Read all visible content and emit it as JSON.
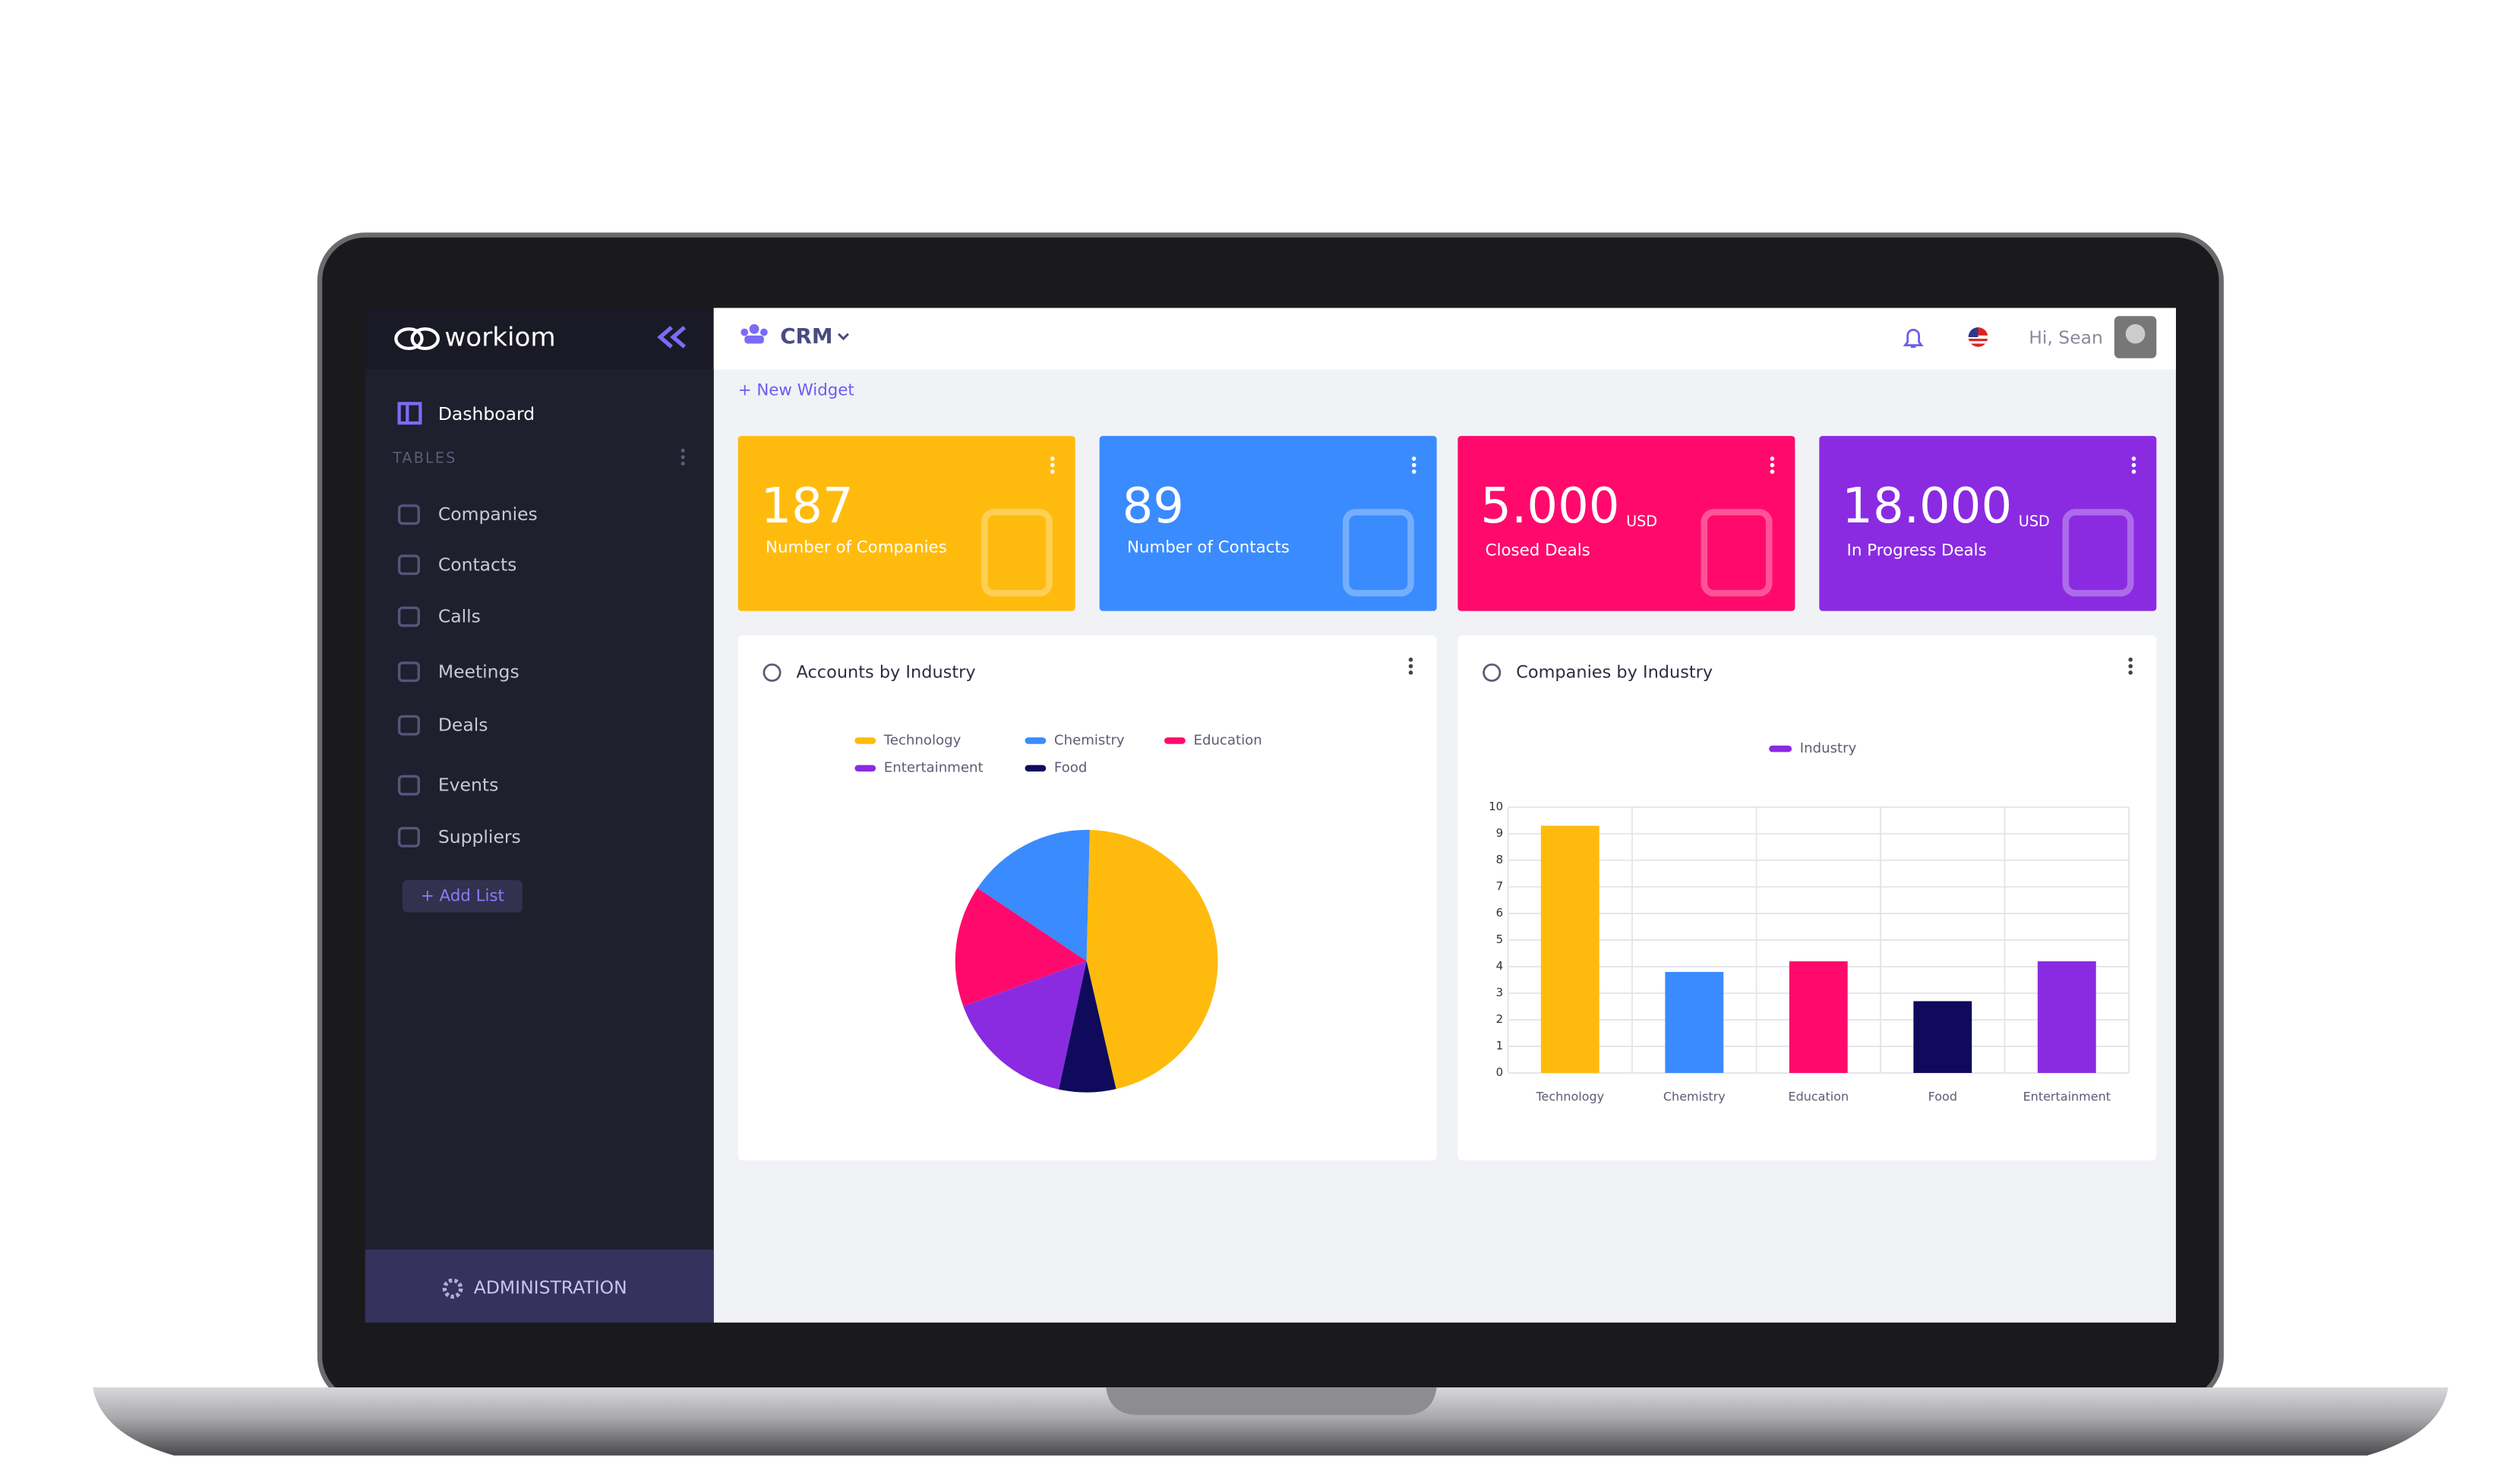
{
  "brand": "workiom",
  "header": {
    "module": "CRM",
    "greeting": "Hi, Sean",
    "new_widget": "+ New Widget"
  },
  "sidebar": {
    "dashboard": "Dashboard",
    "section": "TABLES",
    "items": [
      "Companies",
      "Contacts",
      "Calls",
      "Meetings",
      "Deals",
      "Events",
      "Suppliers"
    ],
    "add_list": "+ Add List",
    "admin": "ADMINISTRATION"
  },
  "widgets": [
    {
      "value": "187",
      "label": "Number of Companies",
      "color": "#ffbb0d"
    },
    {
      "value": "89",
      "label": "Number of Contacts",
      "color": "#3a8bfd"
    },
    {
      "value": "5.000",
      "unit": "USD",
      "label": "Closed Deals",
      "color": "#ff0a6c"
    },
    {
      "value": "18.000",
      "unit": "USD",
      "label": "In Progress Deals",
      "color": "#8a2be2"
    }
  ],
  "charts": [
    {
      "type": "pie",
      "title": "Accounts by Industry",
      "categories": [
        "Technology",
        "Chemistry",
        "Education",
        "Entertainment",
        "Food"
      ],
      "values": [
        46,
        16,
        15,
        16,
        7
      ],
      "colors": [
        "#ffbb0d",
        "#3a8bfd",
        "#ff0a6c",
        "#8a2be2",
        "#0f0a5c"
      ]
    },
    {
      "type": "bar",
      "title": "Companies by Industry",
      "categories": [
        "Technology",
        "Chemistry",
        "Education",
        "Food",
        "Entertainment"
      ],
      "series": [
        {
          "name": "Industry",
          "color": "#8a2be2",
          "values": [
            9.3,
            3.8,
            4.2,
            2.7,
            4.2
          ],
          "colors": [
            "#ffbb0d",
            "#3a8bfd",
            "#ff0a6c",
            "#0f0a5c",
            "#8a2be2"
          ]
        }
      ],
      "ylim": [
        0,
        10
      ],
      "yticks": [
        0,
        1,
        2,
        3,
        4,
        5,
        6,
        7,
        8,
        9,
        10
      ],
      "grid": true
    }
  ]
}
